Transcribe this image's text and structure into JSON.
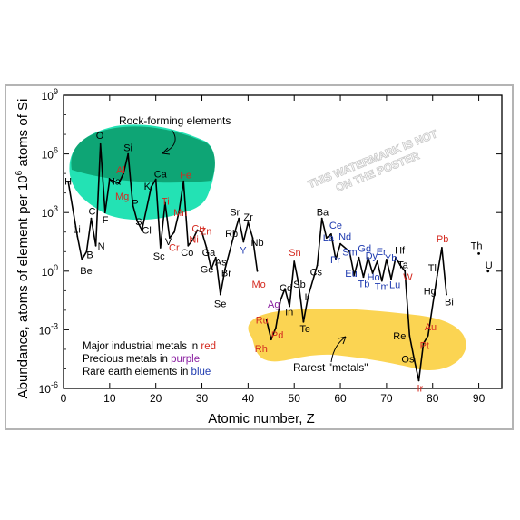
{
  "chart_data": {
    "type": "line",
    "xlabel": "Atomic number, Z",
    "ylabel_main": "Abundance, atoms of element per 10",
    "ylabel_sup": "6",
    "ylabel_tail": " atoms of Si",
    "xlim": [
      0,
      95
    ],
    "ylim_log10": [
      -6,
      9
    ],
    "x_ticks": [
      "0",
      "10",
      "20",
      "30",
      "40",
      "50",
      "60",
      "70",
      "80",
      "90"
    ],
    "y_ticks": [
      {
        "exp": -6,
        "base": "10",
        "power": "-6"
      },
      {
        "exp": -3,
        "base": "10",
        "power": "-3"
      },
      {
        "exp": 0,
        "base": "10",
        "power": "0"
      },
      {
        "exp": 3,
        "base": "10",
        "power": "3"
      },
      {
        "exp": 6,
        "base": "10",
        "power": "6"
      },
      {
        "exp": 9,
        "base": "10",
        "power": "9"
      }
    ],
    "colors": {
      "plain": "#000000",
      "industrial": "#d42a20",
      "precious": "#8a1fa0",
      "rare_earth": "#1f3bb0",
      "rock_region": "#17e0b0",
      "rock_region_dark": "#0a9a6a",
      "rare_region": "#fbd249"
    },
    "regions": {
      "rock_label": "Rock-forming elements",
      "rare_label": "Rarest \"metals\""
    },
    "legend": [
      {
        "prefix": "Major industrial metals in ",
        "word": "red",
        "color": "#d42a20"
      },
      {
        "prefix": "Precious metals in ",
        "word": "purple",
        "color": "#8a1fa0"
      },
      {
        "prefix": "Rare earth elements in ",
        "word": "blue",
        "color": "#1f3bb0"
      }
    ],
    "watermark": [
      "THIS WATERMARK IS NOT",
      "ON THE POSTER"
    ],
    "series_main": [
      {
        "z": 1,
        "v": 4.6
      },
      {
        "z": 3,
        "v": 1.78
      },
      {
        "z": 4,
        "v": 0.6
      },
      {
        "z": 5,
        "v": 1.0
      },
      {
        "z": 6,
        "v": 2.7
      },
      {
        "z": 7,
        "v": 1.3
      },
      {
        "z": 8,
        "v": 6.5
      },
      {
        "z": 9,
        "v": 3.0
      },
      {
        "z": 10,
        "v": 4.7
      },
      {
        "z": 11,
        "v": 4.6
      },
      {
        "z": 12,
        "v": 4.5
      },
      {
        "z": 13,
        "v": 5.0
      },
      {
        "z": 14,
        "v": 6.0
      },
      {
        "z": 15,
        "v": 3.4
      },
      {
        "z": 16,
        "v": 2.55
      },
      {
        "z": 17,
        "v": 2.1
      },
      {
        "z": 19,
        "v": 4.3
      },
      {
        "z": 20,
        "v": 4.7
      },
      {
        "z": 21,
        "v": 1.2
      },
      {
        "z": 22,
        "v": 3.5
      },
      {
        "z": 23,
        "v": 1.7
      },
      {
        "z": 24,
        "v": 2.0
      },
      {
        "z": 25,
        "v": 3.0
      },
      {
        "z": 26,
        "v": 4.6
      },
      {
        "z": 27,
        "v": 1.3
      },
      {
        "z": 28,
        "v": 1.6
      },
      {
        "z": 29,
        "v": 2.1
      },
      {
        "z": 30,
        "v": 2.0
      },
      {
        "z": 31,
        "v": 1.2
      },
      {
        "z": 32,
        "v": 0.1
      },
      {
        "z": 33,
        "v": 0.7
      },
      {
        "z": 34,
        "v": -1.2
      },
      {
        "z": 35,
        "v": 0.1
      },
      {
        "z": 37,
        "v": 1.9
      },
      {
        "z": 38,
        "v": 2.7
      },
      {
        "z": 39,
        "v": 1.5
      },
      {
        "z": 40,
        "v": 2.5
      },
      {
        "z": 41,
        "v": 1.7
      },
      {
        "z": 42,
        "v": 0.0
      }
    ],
    "series_heavy": [
      {
        "z": 44,
        "v": -2.5
      },
      {
        "z": 45,
        "v": -3.5
      },
      {
        "z": 46,
        "v": -2.9
      },
      {
        "z": 47,
        "v": -1.5
      },
      {
        "z": 48,
        "v": -0.9
      },
      {
        "z": 49,
        "v": -1.8
      },
      {
        "z": 50,
        "v": 0.5
      },
      {
        "z": 51,
        "v": -0.7
      },
      {
        "z": 52,
        "v": -2.6
      },
      {
        "z": 53,
        "v": -1.3
      },
      {
        "z": 55,
        "v": 0.3
      },
      {
        "z": 56,
        "v": 2.7
      },
      {
        "z": 57,
        "v": 1.7
      },
      {
        "z": 58,
        "v": 1.9
      },
      {
        "z": 59,
        "v": 0.6
      },
      {
        "z": 60,
        "v": 1.4
      },
      {
        "z": 62,
        "v": 1.0
      },
      {
        "z": 63,
        "v": -0.2
      },
      {
        "z": 64,
        "v": 0.7
      },
      {
        "z": 65,
        "v": -0.3
      },
      {
        "z": 66,
        "v": 0.7
      },
      {
        "z": 67,
        "v": -0.1
      },
      {
        "z": 68,
        "v": 0.5
      },
      {
        "z": 69,
        "v": -0.5
      },
      {
        "z": 70,
        "v": 0.6
      },
      {
        "z": 71,
        "v": -0.4
      },
      {
        "z": 72,
        "v": 0.7
      },
      {
        "z": 73,
        "v": 0.3
      },
      {
        "z": 74,
        "v": 0.0
      },
      {
        "z": 75,
        "v": -3.3
      },
      {
        "z": 76,
        "v": -4.5
      },
      {
        "z": 77,
        "v": -5.6
      },
      {
        "z": 78,
        "v": -3.7
      },
      {
        "z": 79,
        "v": -3.3
      },
      {
        "z": 81,
        "v": -0.2
      },
      {
        "z": 82,
        "v": 1.2
      },
      {
        "z": 83,
        "v": -1.2
      }
    ],
    "series_th_u": [
      {
        "z": 90,
        "v": 0.9
      },
      {
        "z": 92,
        "v": 0.0
      }
    ],
    "labels": [
      {
        "t": "H",
        "z": 1,
        "v": 4.6,
        "c": "plain",
        "dx": -4,
        "dy": 4
      },
      {
        "t": "Li",
        "z": 3,
        "v": 1.78,
        "c": "plain",
        "dx": -5,
        "dy": -4
      },
      {
        "t": "Be",
        "z": 4,
        "v": 0.6,
        "c": "plain",
        "dx": -2,
        "dy": 16
      },
      {
        "t": "B",
        "z": 5,
        "v": 1.0,
        "c": "plain",
        "dx": 0,
        "dy": 7
      },
      {
        "t": "C",
        "z": 6,
        "v": 2.7,
        "c": "plain",
        "dx": -3,
        "dy": -4
      },
      {
        "t": "N",
        "z": 7,
        "v": 1.3,
        "c": "plain",
        "dx": 2,
        "dy": 4
      },
      {
        "t": "O",
        "z": 8,
        "v": 6.5,
        "c": "plain",
        "dx": -5,
        "dy": -6
      },
      {
        "t": "F",
        "z": 9,
        "v": 3.0,
        "c": "plain",
        "dx": -3,
        "dy": 12
      },
      {
        "t": "Na",
        "z": 11,
        "v": 4.6,
        "c": "plain",
        "dx": -7,
        "dy": 4
      },
      {
        "t": "Mg",
        "z": 12,
        "v": 4.5,
        "c": "industrial",
        "dx": -4,
        "dy": 18
      },
      {
        "t": "Al",
        "z": 13,
        "v": 5.0,
        "c": "industrial",
        "dx": -8,
        "dy": 0
      },
      {
        "t": "Si",
        "z": 14,
        "v": 6.0,
        "c": "plain",
        "dx": -5,
        "dy": -3
      },
      {
        "t": "P",
        "z": 15,
        "v": 3.4,
        "c": "plain",
        "dx": -1,
        "dy": 2
      },
      {
        "t": "S",
        "z": 16,
        "v": 2.55,
        "c": "plain",
        "dx": -2,
        "dy": 4
      },
      {
        "t": "Cl",
        "z": 17,
        "v": 2.1,
        "c": "plain",
        "dx": 0,
        "dy": 4
      },
      {
        "t": "K",
        "z": 19,
        "v": 4.3,
        "c": "plain",
        "dx": -8,
        "dy": 3
      },
      {
        "t": "Ca",
        "z": 20,
        "v": 4.7,
        "c": "plain",
        "dx": -2,
        "dy": -2
      },
      {
        "t": "Ti",
        "z": 22,
        "v": 3.5,
        "c": "industrial",
        "dx": -4,
        "dy": 2
      },
      {
        "t": "Sc",
        "z": 21,
        "v": 1.2,
        "c": "plain",
        "dx": -8,
        "dy": 13
      },
      {
        "t": "V",
        "z": 23,
        "v": 1.7,
        "c": "plain",
        "dx": -5,
        "dy": 8
      },
      {
        "t": "Cr",
        "z": 24,
        "v": 2.0,
        "c": "industrial",
        "dx": -6,
        "dy": 21
      },
      {
        "t": "Mn",
        "z": 25,
        "v": 3.0,
        "c": "industrial",
        "dx": -6,
        "dy": 4
      },
      {
        "t": "Fe",
        "z": 26,
        "v": 4.6,
        "c": "industrial",
        "dx": -4,
        "dy": -3
      },
      {
        "t": "Co",
        "z": 27,
        "v": 1.3,
        "c": "plain",
        "dx": -8,
        "dy": 11
      },
      {
        "t": "Ni",
        "z": 28,
        "v": 1.6,
        "c": "industrial",
        "dx": -4,
        "dy": 3
      },
      {
        "t": "Cu",
        "z": 29,
        "v": 2.1,
        "c": "industrial",
        "dx": -6,
        "dy": 2
      },
      {
        "t": "Zn",
        "z": 30,
        "v": 2.0,
        "c": "industrial",
        "dx": -2,
        "dy": 3
      },
      {
        "t": "Ga",
        "z": 31,
        "v": 1.2,
        "c": "plain",
        "dx": -5,
        "dy": 9
      },
      {
        "t": "Ge",
        "z": 32,
        "v": 0.1,
        "c": "plain",
        "dx": -12,
        "dy": 4
      },
      {
        "t": "As",
        "z": 33,
        "v": 0.7,
        "c": "plain",
        "dx": -1,
        "dy": 9
      },
      {
        "t": "Se",
        "z": 34,
        "v": -1.2,
        "c": "plain",
        "dx": -7,
        "dy": 14
      },
      {
        "t": "Br",
        "z": 35,
        "v": 0.1,
        "c": "plain",
        "dx": -4,
        "dy": 8
      },
      {
        "t": "Rb",
        "z": 37,
        "v": 1.9,
        "c": "plain",
        "dx": -10,
        "dy": 3
      },
      {
        "t": "Sr",
        "z": 38,
        "v": 2.7,
        "c": "plain",
        "dx": -10,
        "dy": -3
      },
      {
        "t": "Y",
        "z": 39,
        "v": 1.5,
        "c": "rare_earth",
        "dx": -4,
        "dy": 13
      },
      {
        "t": "Zr",
        "z": 40,
        "v": 2.5,
        "c": "plain",
        "dx": -5,
        "dy": -2
      },
      {
        "t": "Nb",
        "z": 41,
        "v": 1.7,
        "c": "plain",
        "dx": -2,
        "dy": 9
      },
      {
        "t": "Mo",
        "z": 42,
        "v": 0.0,
        "c": "industrial",
        "dx": -6,
        "dy": 18
      },
      {
        "t": "Ru",
        "z": 44,
        "v": -2.5,
        "c": "industrial",
        "dx": -12,
        "dy": 4
      },
      {
        "t": "Rh",
        "z": 45,
        "v": -3.5,
        "c": "industrial",
        "dx": -18,
        "dy": 14
      },
      {
        "t": "Pd",
        "z": 46,
        "v": -2.9,
        "c": "industrial",
        "dx": -5,
        "dy": 12
      },
      {
        "t": "Ag",
        "z": 47,
        "v": -1.5,
        "c": "precious",
        "dx": -14,
        "dy": 8
      },
      {
        "t": "Cd",
        "z": 48,
        "v": -0.9,
        "c": "plain",
        "dx": -6,
        "dy": 3
      },
      {
        "t": "In",
        "z": 49,
        "v": -1.8,
        "c": "plain",
        "dx": -5,
        "dy": 10
      },
      {
        "t": "Sn",
        "z": 50,
        "v": 0.5,
        "c": "industrial",
        "dx": -6,
        "dy": -6
      },
      {
        "t": "Sb",
        "z": 51,
        "v": -0.7,
        "c": "plain",
        "dx": -6,
        "dy": 3
      },
      {
        "t": "Te",
        "z": 52,
        "v": -2.6,
        "c": "plain",
        "dx": -4,
        "dy": 11
      },
      {
        "t": "I",
        "z": 53,
        "v": -1.3,
        "c": "plain",
        "dx": -4,
        "dy": 4
      },
      {
        "t": "Cs",
        "z": 55,
        "v": 0.3,
        "c": "plain",
        "dx": -8,
        "dy": 11
      },
      {
        "t": "Ba",
        "z": 56,
        "v": 2.7,
        "c": "plain",
        "dx": -6,
        "dy": -3
      },
      {
        "t": "La",
        "z": 57,
        "v": 1.7,
        "c": "rare_earth",
        "dx": -4,
        "dy": 4
      },
      {
        "t": "Ce",
        "z": 58,
        "v": 1.9,
        "c": "rare_earth",
        "dx": -2,
        "dy": -6
      },
      {
        "t": "Pr",
        "z": 59,
        "v": 0.6,
        "c": "rare_earth",
        "dx": -6,
        "dy": 4
      },
      {
        "t": "Nd",
        "z": 60,
        "v": 1.4,
        "c": "rare_earth",
        "dx": -2,
        "dy": -4
      },
      {
        "t": "Sm",
        "z": 62,
        "v": 1.0,
        "c": "rare_earth",
        "dx": -8,
        "dy": 4
      },
      {
        "t": "Eu",
        "z": 63,
        "v": -0.2,
        "c": "rare_earth",
        "dx": -10,
        "dy": 2
      },
      {
        "t": "Gd",
        "z": 64,
        "v": 0.7,
        "c": "rare_earth",
        "dx": -1,
        "dy": -6
      },
      {
        "t": "Tb",
        "z": 65,
        "v": -0.3,
        "c": "rare_earth",
        "dx": -6,
        "dy": 11
      },
      {
        "t": "Dy",
        "z": 66,
        "v": 0.7,
        "c": "rare_earth",
        "dx": -3,
        "dy": 2
      },
      {
        "t": "Ho",
        "z": 67,
        "v": -0.1,
        "c": "rare_earth",
        "dx": -6,
        "dy": 8
      },
      {
        "t": "Er",
        "z": 68,
        "v": 0.5,
        "c": "rare_earth",
        "dx": -1,
        "dy": -7
      },
      {
        "t": "Tm",
        "z": 69,
        "v": -0.5,
        "c": "rare_earth",
        "dx": -8,
        "dy": 10
      },
      {
        "t": "Yb",
        "z": 70,
        "v": 0.6,
        "c": "rare_earth",
        "dx": -2,
        "dy": 2
      },
      {
        "t": "Lu",
        "z": 71,
        "v": -0.4,
        "c": "rare_earth",
        "dx": -2,
        "dy": 10
      },
      {
        "t": "Hf",
        "z": 72,
        "v": 0.7,
        "c": "plain",
        "dx": -1,
        "dy": -4
      },
      {
        "t": "Ta",
        "z": 73,
        "v": 0.3,
        "c": "plain",
        "dx": -3,
        "dy": 3
      },
      {
        "t": "W",
        "z": 74,
        "v": 0.0,
        "c": "industrial",
        "dx": -2,
        "dy": 10
      },
      {
        "t": "Re",
        "z": 75,
        "v": -3.3,
        "c": "plain",
        "dx": -18,
        "dy": 4
      },
      {
        "t": "Os",
        "z": 76,
        "v": -4.5,
        "c": "plain",
        "dx": -14,
        "dy": 4
      },
      {
        "t": "Ir",
        "z": 77,
        "v": -5.6,
        "c": "industrial",
        "dx": -2,
        "dy": 12
      },
      {
        "t": "Pt",
        "z": 78,
        "v": -3.7,
        "c": "industrial",
        "dx": -4,
        "dy": 6
      },
      {
        "t": "Au",
        "z": 79,
        "v": -3.3,
        "c": "industrial",
        "dx": -4,
        "dy": -6
      },
      {
        "t": "Hg",
        "z": 80,
        "v": -1.0,
        "c": "plain",
        "dx": -10,
        "dy": 4
      },
      {
        "t": "Tl",
        "z": 81,
        "v": -0.2,
        "c": "plain",
        "dx": -10,
        "dy": -4
      },
      {
        "t": "Pb",
        "z": 82,
        "v": 1.2,
        "c": "industrial",
        "dx": -6,
        "dy": -6
      },
      {
        "t": "Bi",
        "z": 83,
        "v": -1.2,
        "c": "plain",
        "dx": -2,
        "dy": 12
      },
      {
        "t": "Th",
        "z": 90,
        "v": 0.9,
        "c": "plain",
        "dx": -9,
        "dy": -5
      },
      {
        "t": "U",
        "z": 92,
        "v": 0.0,
        "c": "plain",
        "dx": -3,
        "dy": -3
      }
    ]
  }
}
